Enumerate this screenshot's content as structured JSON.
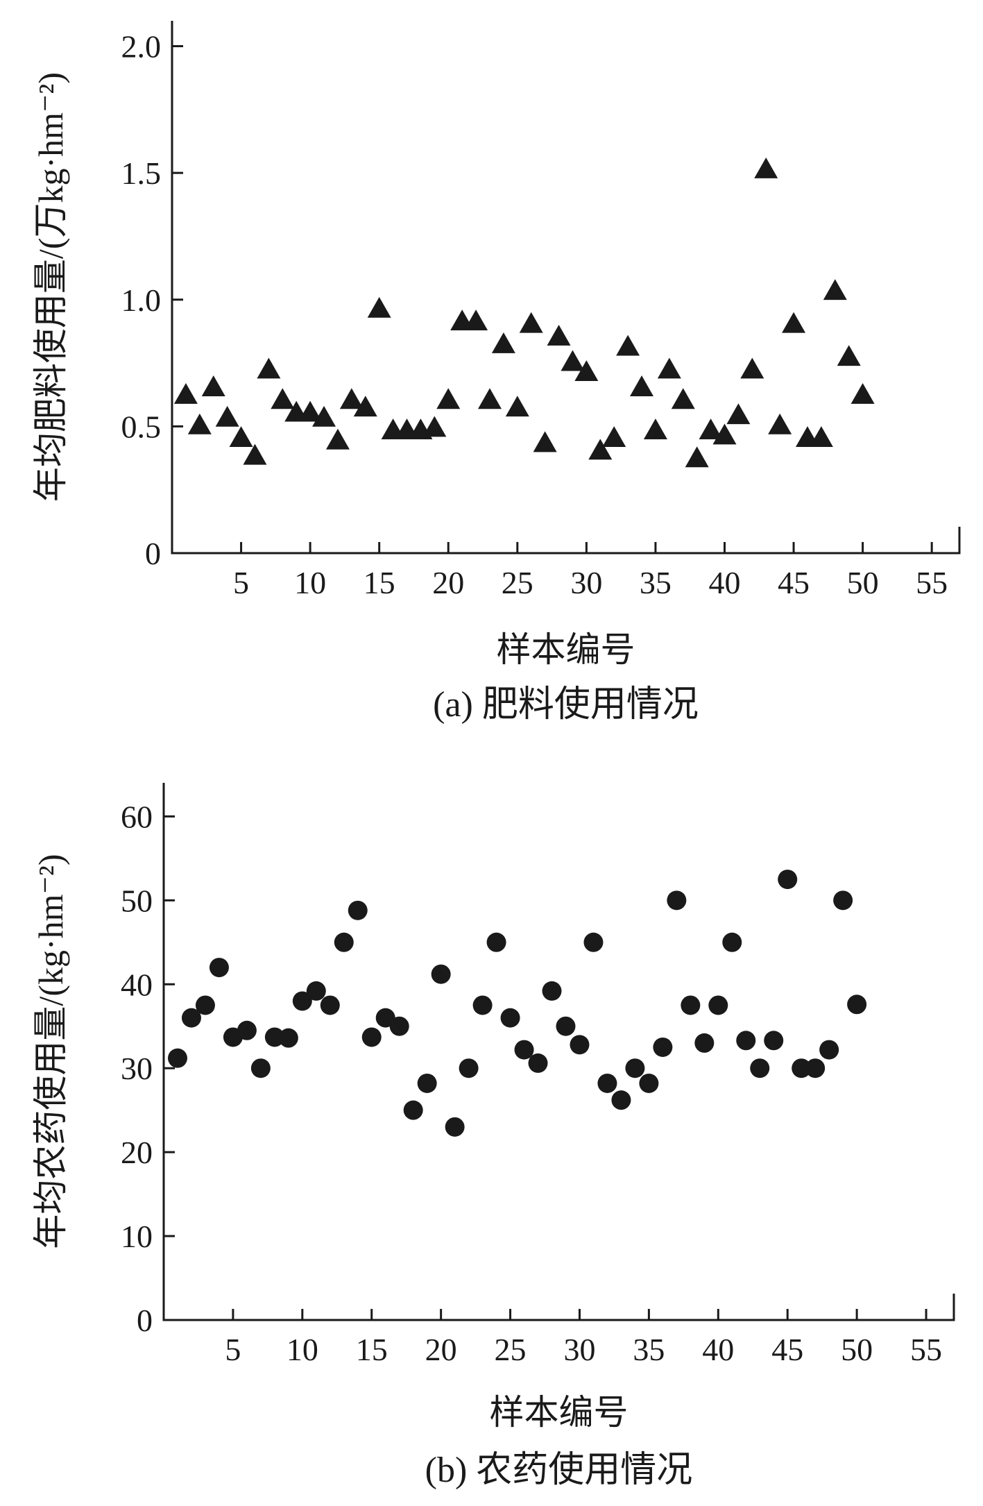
{
  "chart_data": [
    {
      "type": "scatter",
      "caption": "(a) 肥料使用情况",
      "xlabel": "样本编号",
      "ylabel": "年均肥料使用量/(万kg·hm⁻²)",
      "xlim": [
        0,
        57
      ],
      "ylim": [
        0,
        2.1
      ],
      "xticks": [
        5,
        10,
        15,
        20,
        25,
        30,
        35,
        40,
        45,
        50,
        55
      ],
      "yticks": [
        0,
        0.5,
        1.0,
        1.5,
        2.0
      ],
      "ytick_labels": [
        "0",
        "0.5",
        "1.0",
        "1.5",
        "2.0"
      ],
      "marker": "triangle",
      "grid": false,
      "series": [
        {
          "x": [
            1,
            2,
            3,
            4,
            5,
            6,
            7,
            8,
            9,
            10,
            11,
            12,
            13,
            14,
            15,
            16,
            17,
            18,
            19,
            20,
            21,
            22,
            23,
            24,
            25,
            26,
            27,
            28,
            29,
            30,
            31,
            32,
            33,
            34,
            35,
            36,
            37,
            38,
            39,
            40,
            41,
            42,
            43,
            44,
            45,
            46,
            47,
            48,
            49,
            50
          ],
          "y": [
            0.62,
            0.5,
            0.65,
            0.53,
            0.45,
            0.38,
            0.72,
            0.6,
            0.55,
            0.55,
            0.53,
            0.44,
            0.6,
            0.57,
            0.96,
            0.48,
            0.48,
            0.48,
            0.49,
            0.6,
            0.91,
            0.91,
            0.6,
            0.82,
            0.57,
            0.9,
            0.43,
            0.85,
            0.75,
            0.71,
            0.4,
            0.45,
            0.81,
            0.65,
            0.48,
            0.72,
            0.6,
            0.37,
            0.48,
            0.46,
            0.54,
            0.72,
            1.51,
            0.5,
            0.9,
            0.45,
            0.45,
            1.03,
            0.77,
            0.62
          ]
        }
      ]
    },
    {
      "type": "scatter",
      "caption": "(b) 农药使用情况",
      "xlabel": "样本编号",
      "ylabel": "年均农药使用量/(kg·hm⁻²)",
      "xlim": [
        0,
        57
      ],
      "ylim": [
        0,
        64
      ],
      "xticks": [
        5,
        10,
        15,
        20,
        25,
        30,
        35,
        40,
        45,
        50,
        55
      ],
      "yticks": [
        0,
        10,
        20,
        30,
        40,
        50,
        60
      ],
      "ytick_labels": [
        "0",
        "10",
        "20",
        "30",
        "40",
        "50",
        "60"
      ],
      "marker": "circle",
      "grid": false,
      "series": [
        {
          "x": [
            1,
            2,
            3,
            4,
            5,
            6,
            7,
            8,
            9,
            10,
            11,
            12,
            13,
            14,
            15,
            16,
            17,
            18,
            19,
            20,
            21,
            22,
            23,
            24,
            25,
            26,
            27,
            28,
            29,
            30,
            31,
            32,
            33,
            34,
            35,
            36,
            37,
            38,
            39,
            40,
            41,
            42,
            43,
            44,
            45,
            46,
            47,
            48,
            49,
            50
          ],
          "y": [
            31.2,
            36,
            37.5,
            42,
            33.7,
            34.5,
            30,
            33.7,
            33.6,
            38,
            39.2,
            37.5,
            45,
            48.8,
            33.7,
            36,
            35,
            25,
            28.2,
            41.2,
            23,
            30,
            37.5,
            45,
            36,
            32.2,
            30.6,
            39.2,
            35,
            32.8,
            45,
            28.2,
            26.2,
            30,
            28.2,
            32.5,
            50,
            37.5,
            33,
            37.5,
            45,
            33.3,
            30,
            33.3,
            52.5,
            30,
            30,
            32.2,
            50,
            37.6
          ]
        }
      ]
    }
  ]
}
